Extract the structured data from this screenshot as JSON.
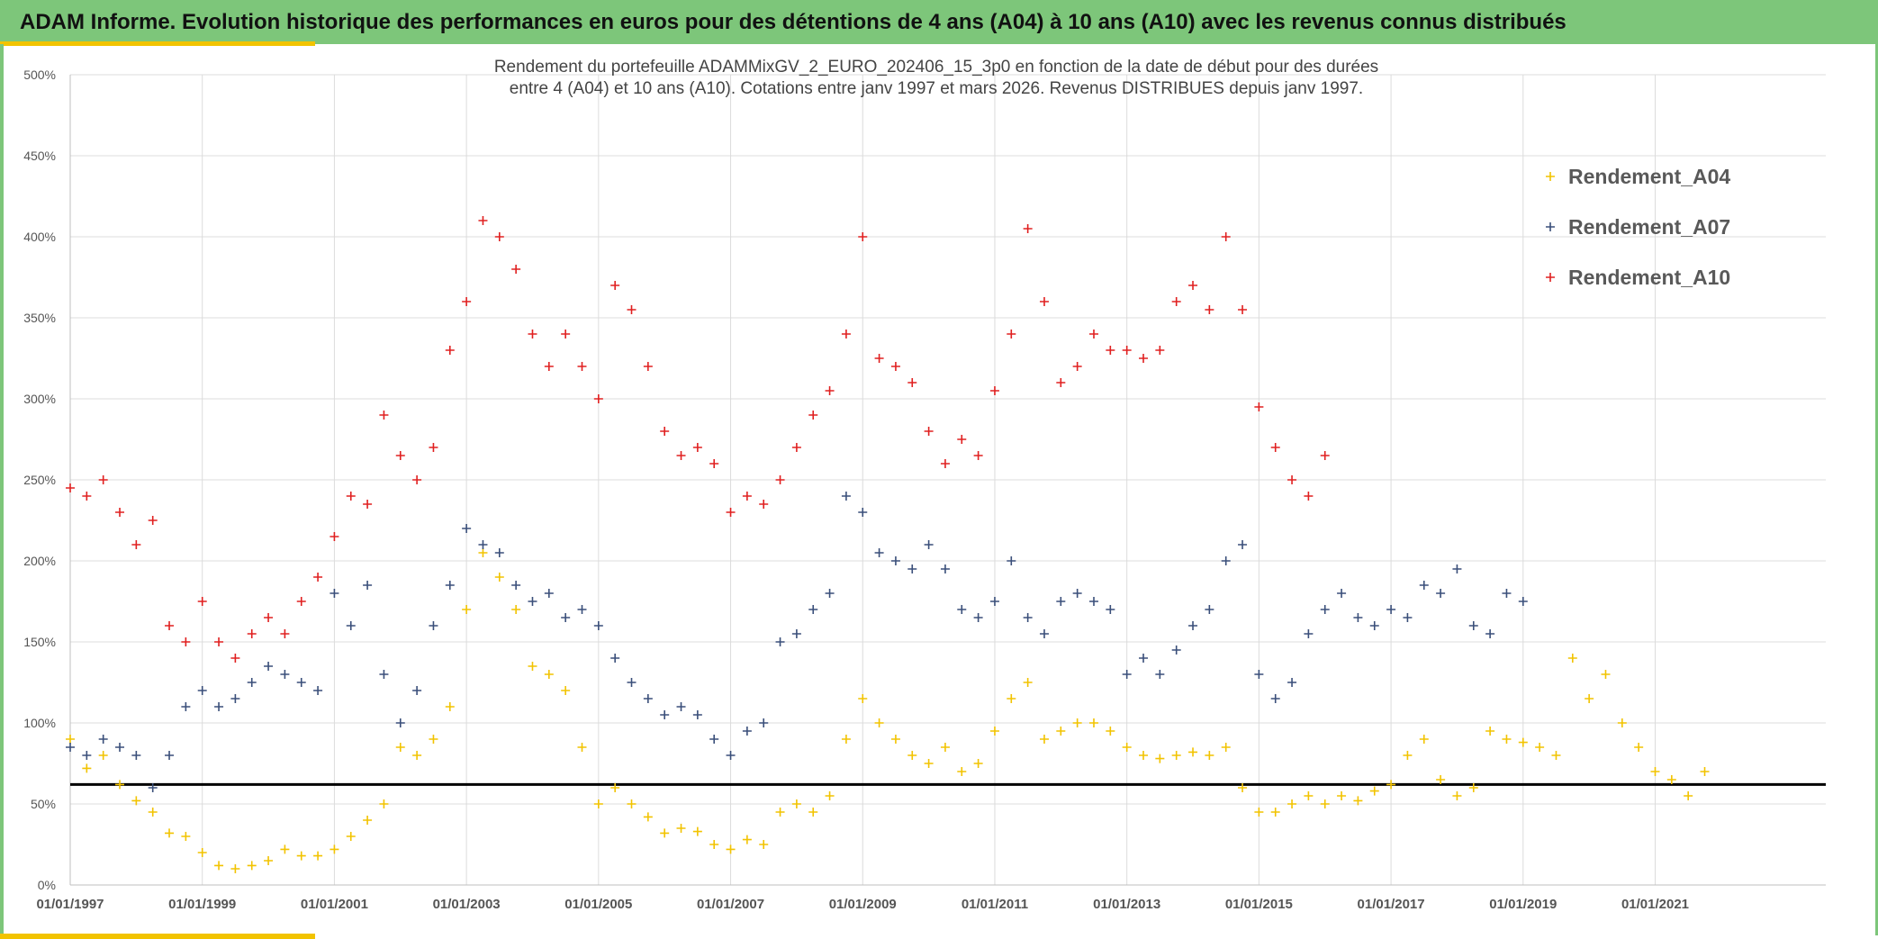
{
  "header": {
    "title": "ADAM Informe. Evolution historique des performances en euros pour des détentions de 4 ans (A04) à 10 ans (A10) avec les revenus connus distribués"
  },
  "colors": {
    "banner": "#7dc67a",
    "accent": "#f2c300",
    "A04": "#f2c300",
    "A07": "#3a4f7a",
    "A10": "#e02020",
    "reference_line": "#000000",
    "grid": "#dcdcdc"
  },
  "chart_data": {
    "type": "scatter",
    "title_line1": "Rendement du portefeuille ADAMMixGV_2_EURO_202406_15_3p0  en fonction de la date de début pour des durées",
    "title_line2": "entre 4 (A04) et 10 ans (A10). Cotations entre janv 1997 et mars 2026. Revenus DISTRIBUES depuis janv 1997.",
    "xlabel": "",
    "ylabel": "",
    "x_range": [
      "1997-01-01",
      "2023-08-01"
    ],
    "y_range": [
      0,
      5.0
    ],
    "y_ticks": [
      "0%",
      "50%",
      "100%",
      "150%",
      "200%",
      "250%",
      "300%",
      "350%",
      "400%",
      "450%",
      "500%"
    ],
    "x_ticks": [
      "01/01/1997",
      "01/01/1999",
      "01/01/2001",
      "01/01/2003",
      "01/01/2005",
      "01/01/2007",
      "01/01/2009",
      "01/01/2011",
      "01/01/2013",
      "01/01/2015",
      "01/01/2017",
      "01/01/2019",
      "01/01/2021"
    ],
    "grid": true,
    "legend_position": "right",
    "reference_line": 0.62,
    "marker": "+",
    "series": [
      {
        "name": "Rendement_A04",
        "color": "#f2c300",
        "points": [
          [
            "1997-01",
            0.9
          ],
          [
            "1997-04",
            0.72
          ],
          [
            "1997-07",
            0.8
          ],
          [
            "1997-10",
            0.62
          ],
          [
            "1998-01",
            0.52
          ],
          [
            "1998-04",
            0.45
          ],
          [
            "1998-07",
            0.32
          ],
          [
            "1998-10",
            0.3
          ],
          [
            "1999-01",
            0.2
          ],
          [
            "1999-04",
            0.12
          ],
          [
            "1999-07",
            0.1
          ],
          [
            "1999-10",
            0.12
          ],
          [
            "2000-01",
            0.15
          ],
          [
            "2000-04",
            0.22
          ],
          [
            "2000-07",
            0.18
          ],
          [
            "2000-10",
            0.18
          ],
          [
            "2001-01",
            0.22
          ],
          [
            "2001-04",
            0.3
          ],
          [
            "2001-07",
            0.4
          ],
          [
            "2001-10",
            0.5
          ],
          [
            "2002-01",
            0.85
          ],
          [
            "2002-04",
            0.8
          ],
          [
            "2002-07",
            0.9
          ],
          [
            "2002-10",
            1.1
          ],
          [
            "2003-01",
            1.7
          ],
          [
            "2003-04",
            2.05
          ],
          [
            "2003-07",
            1.9
          ],
          [
            "2003-10",
            1.7
          ],
          [
            "2004-01",
            1.35
          ],
          [
            "2004-04",
            1.3
          ],
          [
            "2004-07",
            1.2
          ],
          [
            "2004-10",
            0.85
          ],
          [
            "2005-01",
            0.5
          ],
          [
            "2005-04",
            0.6
          ],
          [
            "2005-07",
            0.5
          ],
          [
            "2005-10",
            0.42
          ],
          [
            "2006-01",
            0.32
          ],
          [
            "2006-04",
            0.35
          ],
          [
            "2006-07",
            0.33
          ],
          [
            "2006-10",
            0.25
          ],
          [
            "2007-01",
            0.22
          ],
          [
            "2007-04",
            0.28
          ],
          [
            "2007-07",
            0.25
          ],
          [
            "2007-10",
            0.45
          ],
          [
            "2008-01",
            0.5
          ],
          [
            "2008-04",
            0.45
          ],
          [
            "2008-07",
            0.55
          ],
          [
            "2008-10",
            0.9
          ],
          [
            "2009-01",
            1.15
          ],
          [
            "2009-04",
            1.0
          ],
          [
            "2009-07",
            0.9
          ],
          [
            "2009-10",
            0.8
          ],
          [
            "2010-01",
            0.75
          ],
          [
            "2010-04",
            0.85
          ],
          [
            "2010-07",
            0.7
          ],
          [
            "2010-10",
            0.75
          ],
          [
            "2011-01",
            0.95
          ],
          [
            "2011-04",
            1.15
          ],
          [
            "2011-07",
            1.25
          ],
          [
            "2011-10",
            0.9
          ],
          [
            "2012-01",
            0.95
          ],
          [
            "2012-04",
            1.0
          ],
          [
            "2012-07",
            1.0
          ],
          [
            "2012-10",
            0.95
          ],
          [
            "2013-01",
            0.85
          ],
          [
            "2013-04",
            0.8
          ],
          [
            "2013-07",
            0.78
          ],
          [
            "2013-10",
            0.8
          ],
          [
            "2014-01",
            0.82
          ],
          [
            "2014-04",
            0.8
          ],
          [
            "2014-07",
            0.85
          ],
          [
            "2014-10",
            0.6
          ],
          [
            "2015-01",
            0.45
          ],
          [
            "2015-04",
            0.45
          ],
          [
            "2015-07",
            0.5
          ],
          [
            "2015-10",
            0.55
          ],
          [
            "2016-01",
            0.5
          ],
          [
            "2016-04",
            0.55
          ],
          [
            "2016-07",
            0.52
          ],
          [
            "2016-10",
            0.58
          ],
          [
            "2017-01",
            0.62
          ],
          [
            "2017-04",
            0.8
          ],
          [
            "2017-07",
            0.9
          ],
          [
            "2017-10",
            0.65
          ],
          [
            "2018-01",
            0.55
          ],
          [
            "2018-04",
            0.6
          ],
          [
            "2018-07",
            0.95
          ],
          [
            "2018-10",
            0.9
          ],
          [
            "2019-01",
            0.88
          ],
          [
            "2019-04",
            0.85
          ],
          [
            "2019-07",
            0.8
          ],
          [
            "2019-10",
            1.4
          ],
          [
            "2020-01",
            1.15
          ],
          [
            "2020-04",
            1.3
          ],
          [
            "2020-07",
            1.0
          ],
          [
            "2020-10",
            0.85
          ],
          [
            "2021-01",
            0.7
          ],
          [
            "2021-04",
            0.65
          ],
          [
            "2021-07",
            0.55
          ],
          [
            "2021-10",
            0.7
          ]
        ]
      },
      {
        "name": "Rendement_A07",
        "color": "#3a4f7a",
        "points": [
          [
            "1997-01",
            0.85
          ],
          [
            "1997-04",
            0.8
          ],
          [
            "1997-07",
            0.9
          ],
          [
            "1997-10",
            0.85
          ],
          [
            "1998-01",
            0.8
          ],
          [
            "1998-04",
            0.6
          ],
          [
            "1998-07",
            0.8
          ],
          [
            "1998-10",
            1.1
          ],
          [
            "1999-01",
            1.2
          ],
          [
            "1999-04",
            1.1
          ],
          [
            "1999-07",
            1.15
          ],
          [
            "1999-10",
            1.25
          ],
          [
            "2000-01",
            1.35
          ],
          [
            "2000-04",
            1.3
          ],
          [
            "2000-07",
            1.25
          ],
          [
            "2000-10",
            1.2
          ],
          [
            "2001-01",
            1.8
          ],
          [
            "2001-04",
            1.6
          ],
          [
            "2001-07",
            1.85
          ],
          [
            "2001-10",
            1.3
          ],
          [
            "2002-01",
            1.0
          ],
          [
            "2002-04",
            1.2
          ],
          [
            "2002-07",
            1.6
          ],
          [
            "2002-10",
            1.85
          ],
          [
            "2003-01",
            2.2
          ],
          [
            "2003-04",
            2.1
          ],
          [
            "2003-07",
            2.05
          ],
          [
            "2003-10",
            1.85
          ],
          [
            "2004-01",
            1.75
          ],
          [
            "2004-04",
            1.8
          ],
          [
            "2004-07",
            1.65
          ],
          [
            "2004-10",
            1.7
          ],
          [
            "2005-01",
            1.6
          ],
          [
            "2005-04",
            1.4
          ],
          [
            "2005-07",
            1.25
          ],
          [
            "2005-10",
            1.15
          ],
          [
            "2006-01",
            1.05
          ],
          [
            "2006-04",
            1.1
          ],
          [
            "2006-07",
            1.05
          ],
          [
            "2006-10",
            0.9
          ],
          [
            "2007-01",
            0.8
          ],
          [
            "2007-04",
            0.95
          ],
          [
            "2007-07",
            1.0
          ],
          [
            "2007-10",
            1.5
          ],
          [
            "2008-01",
            1.55
          ],
          [
            "2008-04",
            1.7
          ],
          [
            "2008-07",
            1.8
          ],
          [
            "2008-10",
            2.4
          ],
          [
            "2009-01",
            2.3
          ],
          [
            "2009-04",
            2.05
          ],
          [
            "2009-07",
            2.0
          ],
          [
            "2009-10",
            1.95
          ],
          [
            "2010-01",
            2.1
          ],
          [
            "2010-04",
            1.95
          ],
          [
            "2010-07",
            1.7
          ],
          [
            "2010-10",
            1.65
          ],
          [
            "2011-01",
            1.75
          ],
          [
            "2011-04",
            2.0
          ],
          [
            "2011-07",
            1.65
          ],
          [
            "2011-10",
            1.55
          ],
          [
            "2012-01",
            1.75
          ],
          [
            "2012-04",
            1.8
          ],
          [
            "2012-07",
            1.75
          ],
          [
            "2012-10",
            1.7
          ],
          [
            "2013-01",
            1.3
          ],
          [
            "2013-04",
            1.4
          ],
          [
            "2013-07",
            1.3
          ],
          [
            "2013-10",
            1.45
          ],
          [
            "2014-01",
            1.6
          ],
          [
            "2014-04",
            1.7
          ],
          [
            "2014-07",
            2.0
          ],
          [
            "2014-10",
            2.1
          ],
          [
            "2015-01",
            1.3
          ],
          [
            "2015-04",
            1.15
          ],
          [
            "2015-07",
            1.25
          ],
          [
            "2015-10",
            1.55
          ],
          [
            "2016-01",
            1.7
          ],
          [
            "2016-04",
            1.8
          ],
          [
            "2016-07",
            1.65
          ],
          [
            "2016-10",
            1.6
          ],
          [
            "2017-01",
            1.7
          ],
          [
            "2017-04",
            1.65
          ],
          [
            "2017-07",
            1.85
          ],
          [
            "2017-10",
            1.8
          ],
          [
            "2018-01",
            1.95
          ],
          [
            "2018-04",
            1.6
          ],
          [
            "2018-07",
            1.55
          ],
          [
            "2018-10",
            1.8
          ],
          [
            "2019-01",
            1.75
          ]
        ]
      },
      {
        "name": "Rendement_A10",
        "color": "#e02020",
        "points": [
          [
            "1997-01",
            2.45
          ],
          [
            "1997-04",
            2.4
          ],
          [
            "1997-07",
            2.5
          ],
          [
            "1997-10",
            2.3
          ],
          [
            "1998-01",
            2.1
          ],
          [
            "1998-04",
            2.25
          ],
          [
            "1998-07",
            1.6
          ],
          [
            "1998-10",
            1.5
          ],
          [
            "1999-01",
            1.75
          ],
          [
            "1999-04",
            1.5
          ],
          [
            "1999-07",
            1.4
          ],
          [
            "1999-10",
            1.55
          ],
          [
            "2000-01",
            1.65
          ],
          [
            "2000-04",
            1.55
          ],
          [
            "2000-07",
            1.75
          ],
          [
            "2000-10",
            1.9
          ],
          [
            "2001-01",
            2.15
          ],
          [
            "2001-04",
            2.4
          ],
          [
            "2001-07",
            2.35
          ],
          [
            "2001-10",
            2.9
          ],
          [
            "2002-01",
            2.65
          ],
          [
            "2002-04",
            2.5
          ],
          [
            "2002-07",
            2.7
          ],
          [
            "2002-10",
            3.3
          ],
          [
            "2003-01",
            3.6
          ],
          [
            "2003-04",
            4.1
          ],
          [
            "2003-07",
            4.0
          ],
          [
            "2003-10",
            3.8
          ],
          [
            "2004-01",
            3.4
          ],
          [
            "2004-04",
            3.2
          ],
          [
            "2004-07",
            3.4
          ],
          [
            "2004-10",
            3.2
          ],
          [
            "2005-01",
            3.0
          ],
          [
            "2005-04",
            3.7
          ],
          [
            "2005-07",
            3.55
          ],
          [
            "2005-10",
            3.2
          ],
          [
            "2006-01",
            2.8
          ],
          [
            "2006-04",
            2.65
          ],
          [
            "2006-07",
            2.7
          ],
          [
            "2006-10",
            2.6
          ],
          [
            "2007-01",
            2.3
          ],
          [
            "2007-04",
            2.4
          ],
          [
            "2007-07",
            2.35
          ],
          [
            "2007-10",
            2.5
          ],
          [
            "2008-01",
            2.7
          ],
          [
            "2008-04",
            2.9
          ],
          [
            "2008-07",
            3.05
          ],
          [
            "2008-10",
            3.4
          ],
          [
            "2009-01",
            4.0
          ],
          [
            "2009-04",
            3.25
          ],
          [
            "2009-07",
            3.2
          ],
          [
            "2009-10",
            3.1
          ],
          [
            "2010-01",
            2.8
          ],
          [
            "2010-04",
            2.6
          ],
          [
            "2010-07",
            2.75
          ],
          [
            "2010-10",
            2.65
          ],
          [
            "2011-01",
            3.05
          ],
          [
            "2011-04",
            3.4
          ],
          [
            "2011-07",
            4.05
          ],
          [
            "2011-10",
            3.6
          ],
          [
            "2012-01",
            3.1
          ],
          [
            "2012-04",
            3.2
          ],
          [
            "2012-07",
            3.4
          ],
          [
            "2012-10",
            3.3
          ],
          [
            "2013-01",
            3.3
          ],
          [
            "2013-04",
            3.25
          ],
          [
            "2013-07",
            3.3
          ],
          [
            "2013-10",
            3.6
          ],
          [
            "2014-01",
            3.7
          ],
          [
            "2014-04",
            3.55
          ],
          [
            "2014-07",
            4.0
          ],
          [
            "2014-10",
            3.55
          ],
          [
            "2015-01",
            2.95
          ],
          [
            "2015-04",
            2.7
          ],
          [
            "2015-07",
            2.5
          ],
          [
            "2015-10",
            2.4
          ],
          [
            "2016-01",
            2.65
          ]
        ]
      }
    ]
  }
}
